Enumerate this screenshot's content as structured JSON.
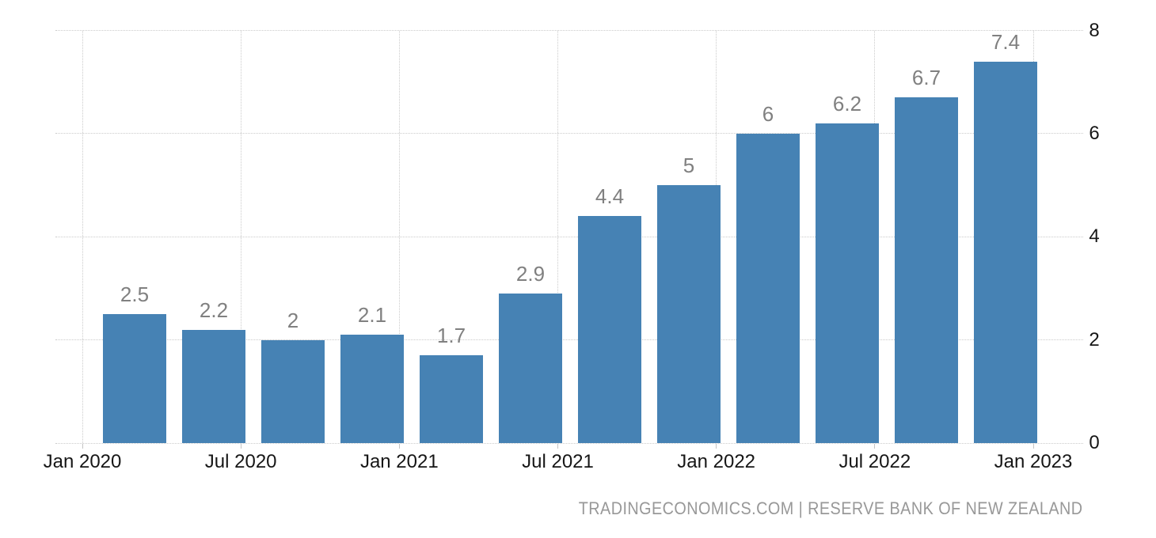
{
  "chart_data": {
    "type": "bar",
    "values": [
      2.5,
      2.2,
      2,
      2.1,
      1.7,
      2.9,
      4.4,
      5,
      6,
      6.2,
      6.7,
      7.4
    ],
    "bar_labels": [
      "2.5",
      "2.2",
      "2",
      "2.1",
      "1.7",
      "2.9",
      "4.4",
      "5",
      "6",
      "6.2",
      "6.7",
      "7.4"
    ],
    "x_tick_labels": [
      "Jan 2020",
      "Jul 2020",
      "Jan 2021",
      "Jul 2021",
      "Jan 2022",
      "Jul 2022",
      "Jan 2023"
    ],
    "y_tick_labels": [
      "0",
      "2",
      "4",
      "6",
      "8"
    ],
    "y_tick_values": [
      0,
      2,
      4,
      6,
      8
    ],
    "ylim": [
      0,
      8
    ],
    "title": "",
    "xlabel": "",
    "ylabel": "",
    "legend": "none",
    "grid": "dotted",
    "y_axis_position": "right",
    "bar_color": "#4682b4",
    "value_label_color": "#808080",
    "axis_label_color": "#161616",
    "gridline_color": "#cbcbcb",
    "background_color": "#ffffff"
  },
  "attribution": {
    "text": "TRADINGECONOMICS.COM | RESERVE BANK OF NEW ZEALAND",
    "color": "#989898"
  }
}
